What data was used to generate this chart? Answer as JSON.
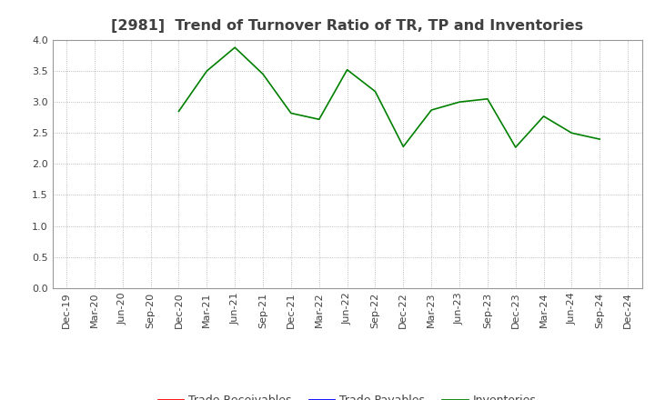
{
  "title": "[2981]  Trend of Turnover Ratio of TR, TP and Inventories",
  "x_labels": [
    "Dec-19",
    "Mar-20",
    "Jun-20",
    "Sep-20",
    "Dec-20",
    "Mar-21",
    "Jun-21",
    "Sep-21",
    "Dec-21",
    "Mar-22",
    "Jun-22",
    "Sep-22",
    "Dec-22",
    "Mar-23",
    "Jun-23",
    "Sep-23",
    "Dec-23",
    "Mar-24",
    "Jun-24",
    "Sep-24",
    "Dec-24"
  ],
  "inventories": [
    null,
    null,
    null,
    null,
    2.85,
    3.5,
    3.88,
    3.45,
    2.82,
    2.72,
    3.52,
    3.17,
    2.28,
    2.87,
    3.0,
    3.05,
    2.27,
    2.77,
    2.5,
    2.4,
    null
  ],
  "trade_receivables": [
    null,
    null,
    null,
    null,
    null,
    null,
    null,
    null,
    null,
    null,
    null,
    null,
    null,
    null,
    null,
    null,
    null,
    null,
    null,
    null,
    null
  ],
  "trade_payables": [
    null,
    null,
    null,
    null,
    null,
    null,
    null,
    null,
    null,
    null,
    null,
    null,
    null,
    null,
    null,
    null,
    null,
    null,
    null,
    null,
    null
  ],
  "inventories_color": "#008000",
  "trade_receivables_color": "#FF0000",
  "trade_payables_color": "#0000FF",
  "ylim": [
    0.0,
    4.0
  ],
  "yticks": [
    0.0,
    0.5,
    1.0,
    1.5,
    2.0,
    2.5,
    3.0,
    3.5,
    4.0
  ],
  "title_fontsize": 11.5,
  "axis_fontsize": 8,
  "legend_fontsize": 9,
  "tick_color": "#404040",
  "title_color": "#404040",
  "legend_text_color": "#404040",
  "background_color": "#ffffff",
  "grid_color": "#aaaaaa"
}
